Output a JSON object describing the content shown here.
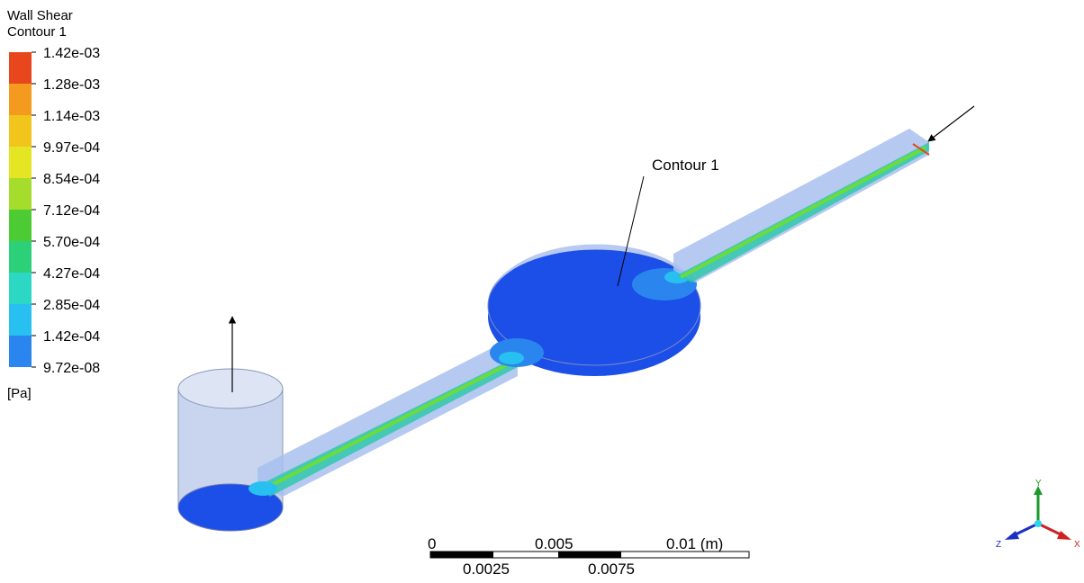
{
  "legend": {
    "title": "Wall Shear",
    "subtitle": "Contour 1",
    "labels": [
      "1.42e-03",
      "1.28e-03",
      "1.14e-03",
      "9.97e-04",
      "8.54e-04",
      "7.12e-04",
      "5.70e-04",
      "4.27e-04",
      "2.85e-04",
      "1.42e-04",
      "9.72e-08"
    ],
    "colors": [
      "#e8461c",
      "#f49a1e",
      "#f2c51c",
      "#e4e624",
      "#a6dc2c",
      "#4ccc32",
      "#2cd078",
      "#2cd8c4",
      "#28c0f0",
      "#2a86ee",
      "#1c48e8"
    ],
    "unit": "[Pa]"
  },
  "annotation": "Contour 1",
  "scale_bar": {
    "top": [
      "0",
      "0.005",
      "0.01 (m)"
    ],
    "bottom": [
      "0.0025",
      "0.0075"
    ]
  },
  "axes": {
    "x": "X",
    "y": "Y",
    "z": "Z"
  }
}
